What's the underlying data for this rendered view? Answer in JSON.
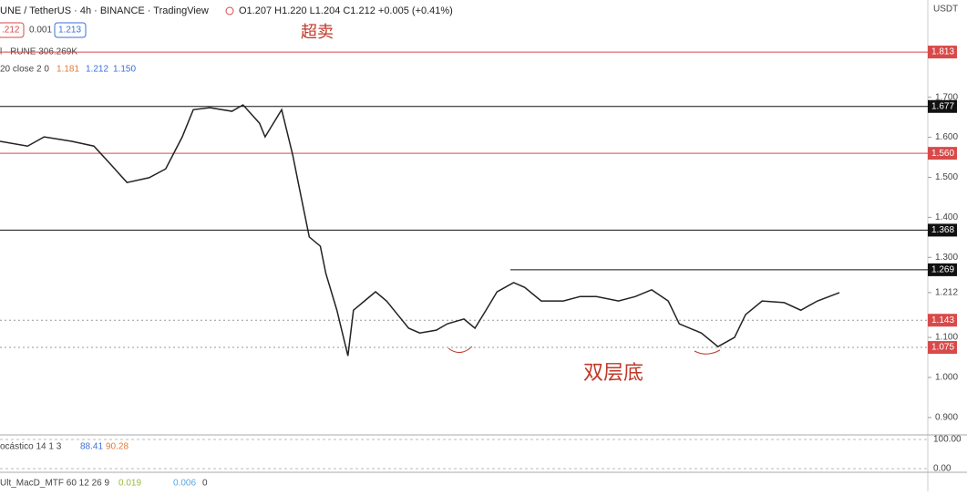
{
  "header": {
    "symbol": "UNE / TetherUS · 4h · BINANCE · TradingView",
    "ohlc": "O1.207 H1.220 L1.204 C1.212 +0.005 (+0.41%)",
    "sell": ".212",
    "spread": "0.001",
    "buy": "1.213",
    "volume": "l · RUNE  306.269K",
    "bb": "20 close 2 0",
    "bb_values": [
      "1.181",
      "1.212",
      "1.150"
    ],
    "currency": "USDT"
  },
  "annotations": {
    "oversold": "超卖",
    "double_bottom": "双层底"
  },
  "chart_data": {
    "type": "line",
    "color": "#222222",
    "x": [
      0,
      5,
      8,
      13,
      17,
      20,
      23,
      27,
      30,
      33,
      35,
      38,
      42,
      44,
      47,
      48,
      51,
      53,
      54,
      56,
      58,
      59,
      61,
      63,
      64,
      66,
      68,
      70,
      72,
      74,
      76,
      79,
      81,
      84,
      86,
      88,
      90,
      93,
      95,
      98,
      102,
      105,
      108,
      112,
      115,
      118,
      121,
      123,
      127,
      130,
      133,
      135,
      138,
      142,
      145,
      148,
      152
    ],
    "values": [
      1.59,
      1.578,
      1.601,
      1.59,
      1.578,
      1.533,
      1.487,
      1.499,
      1.521,
      1.601,
      1.669,
      1.674,
      1.665,
      1.681,
      1.635,
      1.601,
      1.669,
      1.556,
      1.487,
      1.351,
      1.328,
      1.26,
      1.168,
      1.054,
      1.168,
      1.191,
      1.214,
      1.191,
      1.157,
      1.123,
      1.111,
      1.118,
      1.134,
      1.146,
      1.123,
      1.168,
      1.214,
      1.237,
      1.225,
      1.191,
      1.191,
      1.202,
      1.202,
      1.191,
      1.202,
      1.219,
      1.191,
      1.134,
      1.111,
      1.077,
      1.1,
      1.157,
      1.191,
      1.187,
      1.168,
      1.191,
      1.212
    ],
    "xlim": [
      0,
      168
    ],
    "ylim": [
      0.861,
      1.943
    ],
    "yticks": [
      {
        "value": 1.7,
        "label": "1.700"
      },
      {
        "value": 1.6,
        "label": "1.600"
      },
      {
        "value": 1.5,
        "label": "1.500"
      },
      {
        "value": 1.4,
        "label": "1.400"
      },
      {
        "value": 1.3,
        "label": "1.300"
      },
      {
        "value": 1.212,
        "label": "1.212"
      },
      {
        "value": 1.1,
        "label": "1.100"
      },
      {
        "value": 1.0,
        "label": "1.000"
      },
      {
        "value": 0.9,
        "label": "0.900"
      }
    ],
    "levels": [
      {
        "value": 1.813,
        "label": "1.813",
        "color": "#d84a4a"
      },
      {
        "value": 1.677,
        "label": "1.677",
        "color": "#111111"
      },
      {
        "value": 1.56,
        "label": "1.560",
        "color": "#d84a4a"
      },
      {
        "value": 1.368,
        "label": "1.368",
        "color": "#111111"
      },
      {
        "value": 1.269,
        "label": "1.269",
        "color": "#111111"
      },
      {
        "value": 1.143,
        "label": "1.143",
        "color": "#d84a4a"
      },
      {
        "value": 1.075,
        "label": "1.075",
        "color": "#d84a4a"
      }
    ]
  },
  "stochastic": {
    "label": "ocástico 14 1 3",
    "k": "88.41",
    "d": "90.28",
    "ylim": [
      0,
      100
    ],
    "yticks": [
      {
        "value": 100,
        "label": "100.00"
      },
      {
        "value": 0,
        "label": "0.00"
      }
    ]
  },
  "macd": {
    "label": "Ult_MacD_MTF 60 12 26 9",
    "v1": "0.019",
    "v2": "0.006",
    "v3": "0"
  }
}
